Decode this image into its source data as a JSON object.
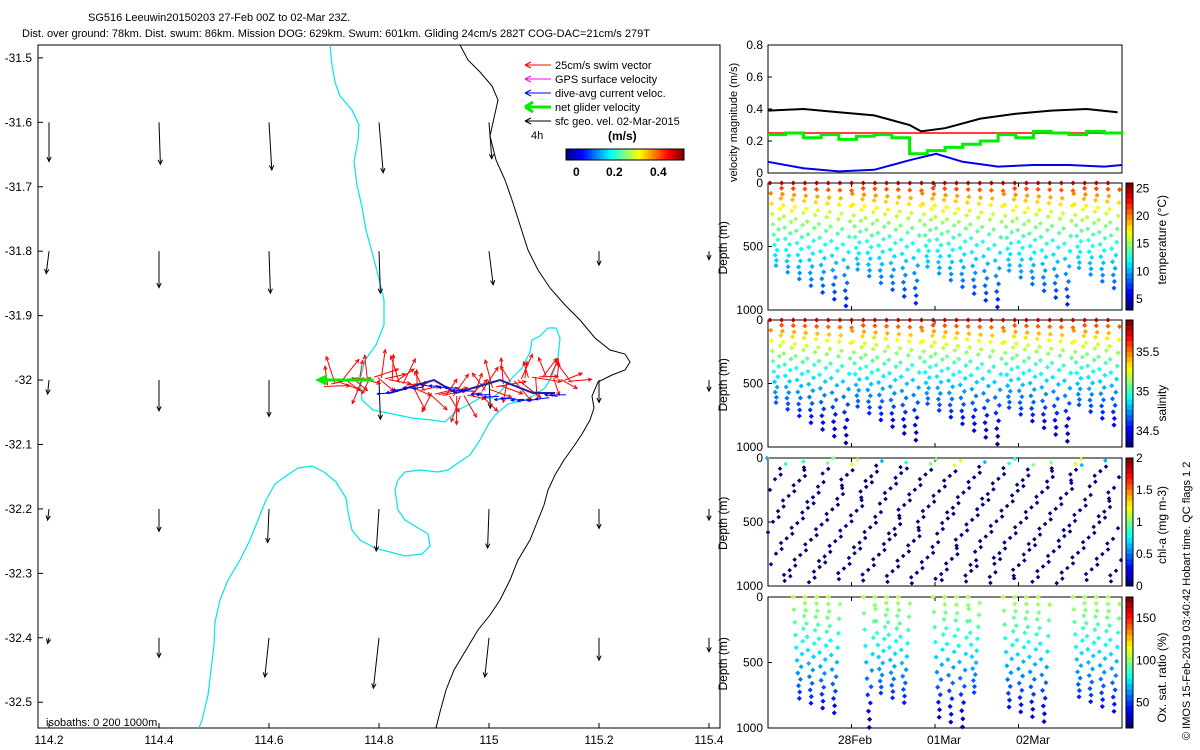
{
  "header": {
    "line1": "SG516 Leeuwin20150203 27-Feb 00Z to 02-Mar 23Z.",
    "line2": "Dist. over ground: 78km. Dist. swum: 86km. Mission DOG: 629km. Swum: 601km. Gliding 24cm/s 282T COG-DAC=21cm/s 279T"
  },
  "footer_vertical": "© IMOS 15-Feb-2019 03:40:42 Hobart time. QC flags 1  2",
  "map": {
    "legend": [
      "25cm/s swim vector",
      "GPS surface velocity",
      "dive-avg current veloc.",
      "net glider velocity",
      "sfc geo. vel. 02-Mar-2015"
    ],
    "legend_colors": [
      "#ff0000",
      "#ff00ff",
      "#0000ff",
      "#00ee00",
      "#000000"
    ],
    "legend_scale_label": "4h",
    "colorbar_title": "(m/s)",
    "colorbar_ticks": [
      "0",
      "0.2",
      "0.4"
    ],
    "isobath_label": "isobaths: 0   200  1000m",
    "isobath_colors": [
      "#000000",
      "#00e5ee"
    ]
  },
  "chart_data": [
    {
      "type": "quiver",
      "name": "glider track map",
      "xlabel": "",
      "ylabel": "",
      "xlim": [
        114.18,
        115.42
      ],
      "ylim": [
        -32.54,
        -31.48
      ],
      "xticks": [
        114.2,
        114.4,
        114.6,
        114.8,
        115,
        115.2,
        115.4
      ],
      "xtick_labels": [
        "114.2",
        "114.4",
        "114.6",
        "114.8",
        "115",
        "115.2",
        "115.4"
      ],
      "yticks": [
        -31.5,
        -31.6,
        -31.7,
        -31.8,
        -31.9,
        -32,
        -32.1,
        -32.2,
        -32.3,
        -32.4,
        -32.5
      ],
      "ytick_labels": [
        "-31.5",
        "-31.6",
        "-31.7",
        "-31.8",
        "-31.9",
        "-32",
        "-32.1",
        "-32.2",
        "-32.3",
        "-32.4",
        "-32.5"
      ],
      "geo_vectors_u_v_ms": [
        [
          0.0,
          -0.14,
          114.2,
          -31.6
        ],
        [
          0.005,
          -0.15,
          114.4,
          -31.6
        ],
        [
          0.01,
          -0.17,
          114.6,
          -31.6
        ],
        [
          0.015,
          -0.18,
          114.8,
          -31.6
        ],
        [
          0.01,
          -0.13,
          115,
          -31.6
        ],
        [
          -0.01,
          -0.08,
          114.2,
          -31.8
        ],
        [
          0.0,
          -0.13,
          114.4,
          -31.8
        ],
        [
          0.005,
          -0.15,
          114.6,
          -31.8
        ],
        [
          0.005,
          -0.15,
          114.8,
          -31.8
        ],
        [
          0.015,
          -0.12,
          115,
          -31.8
        ],
        [
          0.0,
          -0.05,
          115.2,
          -31.8
        ],
        [
          0.0,
          -0.03,
          115.4,
          -31.8
        ],
        [
          -0.005,
          -0.05,
          114.2,
          -32
        ],
        [
          0.0,
          -0.11,
          114.4,
          -32
        ],
        [
          0.0,
          -0.13,
          114.6,
          -32
        ],
        [
          0.005,
          -0.14,
          114.8,
          -32
        ],
        [
          0.005,
          -0.1,
          115,
          -32
        ],
        [
          0.0,
          -0.08,
          115.2,
          -32
        ],
        [
          0.0,
          -0.04,
          115.4,
          -32
        ],
        [
          -0.005,
          -0.04,
          114.2,
          -32.2
        ],
        [
          0.0,
          -0.08,
          114.4,
          -32.2
        ],
        [
          -0.005,
          -0.12,
          114.6,
          -32.2
        ],
        [
          -0.01,
          -0.15,
          114.8,
          -32.2
        ],
        [
          -0.005,
          -0.14,
          115,
          -32.2
        ],
        [
          0.0,
          -0.07,
          115.2,
          -32.2
        ],
        [
          0.0,
          -0.04,
          115.4,
          -32.2
        ],
        [
          -0.005,
          -0.02,
          114.2,
          -32.4
        ],
        [
          0.0,
          -0.07,
          114.4,
          -32.4
        ],
        [
          -0.015,
          -0.14,
          114.6,
          -32.4
        ],
        [
          -0.02,
          -0.18,
          114.8,
          -32.4
        ],
        [
          -0.015,
          -0.14,
          115,
          -32.4
        ],
        [
          0.0,
          -0.08,
          115.2,
          -32.4
        ],
        [
          0.0,
          -0.05,
          115.4,
          -32.4
        ]
      ],
      "glider_track_x": [
        114.82,
        114.86,
        114.9,
        114.94,
        114.98,
        115.02,
        115.05,
        115.08,
        115.1,
        115.12
      ],
      "glider_track_y": [
        -32.02,
        -32.01,
        -32.0,
        -32.02,
        -32.01,
        -32.0,
        -32.01,
        -32.02,
        -32.02,
        -32.02
      ],
      "net_velocity": {
        "x0": 114.79,
        "y0": -32.0,
        "x1": 114.69,
        "y1": -32.0
      }
    },
    {
      "type": "line",
      "name": "velocity magnitude",
      "ylabel": "velocity magnitude (m/s)",
      "ylim": [
        0,
        0.8
      ],
      "yticks": [
        0,
        0.2,
        0.4,
        0.6,
        0.8
      ],
      "xlim": [
        0,
        4
      ],
      "series": [
        {
          "name": "black",
          "x": [
            0,
            0.4,
            0.8,
            1.2,
            1.6,
            1.73,
            2.0,
            2.4,
            2.8,
            3.2,
            3.6,
            3.95
          ],
          "values": [
            0.39,
            0.4,
            0.38,
            0.36,
            0.3,
            0.26,
            0.28,
            0.34,
            0.37,
            0.39,
            0.4,
            0.38
          ]
        },
        {
          "name": "red",
          "x": [
            0,
            4
          ],
          "values": [
            0.25,
            0.25
          ]
        },
        {
          "name": "green",
          "x": [
            0,
            0.2,
            0.4,
            0.6,
            0.8,
            1.0,
            1.2,
            1.4,
            1.6,
            1.8,
            2.0,
            2.2,
            2.4,
            2.6,
            2.8,
            3.0,
            3.2,
            3.4,
            3.6,
            3.8,
            4.0
          ],
          "values": [
            0.24,
            0.25,
            0.22,
            0.24,
            0.21,
            0.23,
            0.24,
            0.22,
            0.12,
            0.14,
            0.16,
            0.18,
            0.2,
            0.24,
            0.22,
            0.26,
            0.25,
            0.24,
            0.26,
            0.25,
            0.26
          ]
        },
        {
          "name": "blue",
          "x": [
            0,
            0.4,
            0.8,
            1.2,
            1.6,
            1.9,
            2.2,
            2.6,
            3.0,
            3.4,
            3.8,
            4.0
          ],
          "values": [
            0.07,
            0.03,
            0.01,
            0.02,
            0.08,
            0.12,
            0.07,
            0.04,
            0.05,
            0.05,
            0.04,
            0.05
          ]
        }
      ]
    },
    {
      "type": "scatter",
      "name": "temperature section",
      "ylabel": "Depth (m)",
      "colorbar_label": "temperature (°C)",
      "colorbar_ticks": [
        "5",
        "10",
        "15",
        "20",
        "25"
      ],
      "crange": [
        3,
        26
      ],
      "ylim": [
        1000,
        0
      ],
      "yticks": [
        "0",
        "500",
        "1000"
      ],
      "dives": 30
    },
    {
      "type": "scatter",
      "name": "salinity section",
      "ylabel": "Depth (m)",
      "colorbar_label": "salinity",
      "colorbar_ticks": [
        "34.5",
        "35",
        "35.5"
      ],
      "crange": [
        34.3,
        35.9
      ],
      "ylim": [
        1000,
        0
      ],
      "yticks": [
        "0",
        "500",
        "1000"
      ],
      "dives": 30
    },
    {
      "type": "scatter",
      "name": "chlorophyll section",
      "ylabel": "Depth (m)",
      "colorbar_label": "chl-a (mg m-3)",
      "colorbar_ticks": [
        "0",
        "0.5",
        "1",
        "1.5",
        "2"
      ],
      "crange": [
        0,
        2
      ],
      "ylim": [
        1000,
        0
      ],
      "yticks": [
        "0",
        "500",
        "1000"
      ],
      "dives": 30
    },
    {
      "type": "scatter",
      "name": "oxygen saturation section",
      "ylabel": "Depth (m)",
      "colorbar_label": "Ox. sat. ratio (%)",
      "colorbar_ticks": [
        "50",
        "100",
        "150"
      ],
      "crange": [
        20,
        175
      ],
      "ylim": [
        1000,
        0
      ],
      "yticks": [
        "0",
        "500",
        "1000"
      ],
      "xtick_labels": [
        "28Feb",
        "01Mar",
        "02Mar"
      ],
      "dives": 30
    }
  ]
}
